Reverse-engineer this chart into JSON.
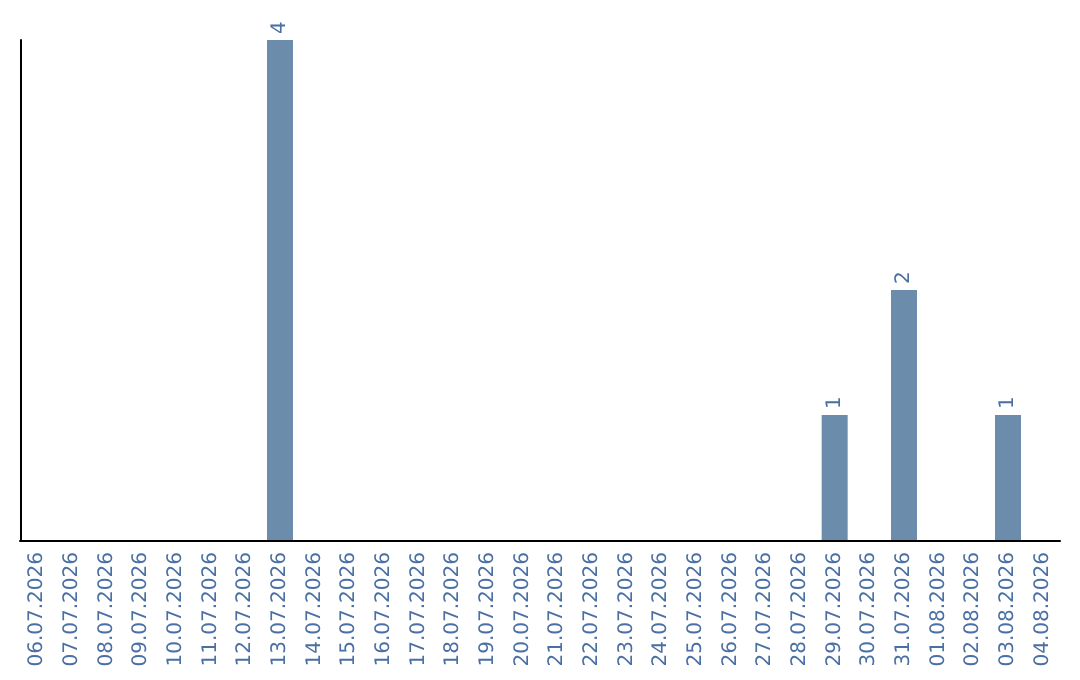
{
  "chart_data": {
    "type": "bar",
    "categories": [
      "06.07.2026",
      "07.07.2026",
      "08.07.2026",
      "09.07.2026",
      "10.07.2026",
      "11.07.2026",
      "12.07.2026",
      "13.07.2026",
      "14.07.2026",
      "15.07.2026",
      "16.07.2026",
      "17.07.2026",
      "18.07.2026",
      "19.07.2026",
      "20.07.2026",
      "21.07.2026",
      "22.07.2026",
      "23.07.2026",
      "24.07.2026",
      "25.07.2026",
      "26.07.2026",
      "27.07.2026",
      "28.07.2026",
      "29.07.2026",
      "30.07.2026",
      "31.07.2026",
      "01.08.2026",
      "02.08.2026",
      "03.08.2026",
      "04.08.2026"
    ],
    "values": [
      0,
      0,
      0,
      0,
      0,
      0,
      0,
      4,
      0,
      0,
      0,
      0,
      0,
      0,
      0,
      0,
      0,
      0,
      0,
      0,
      0,
      0,
      0,
      1,
      0,
      2,
      0,
      0,
      1,
      0
    ],
    "value_labels": [
      null,
      null,
      null,
      null,
      null,
      null,
      null,
      "4",
      null,
      null,
      null,
      null,
      null,
      null,
      null,
      null,
      null,
      null,
      null,
      null,
      null,
      null,
      null,
      "1",
      null,
      "2",
      null,
      null,
      "1",
      null
    ],
    "color": "#6b8cab"
  }
}
